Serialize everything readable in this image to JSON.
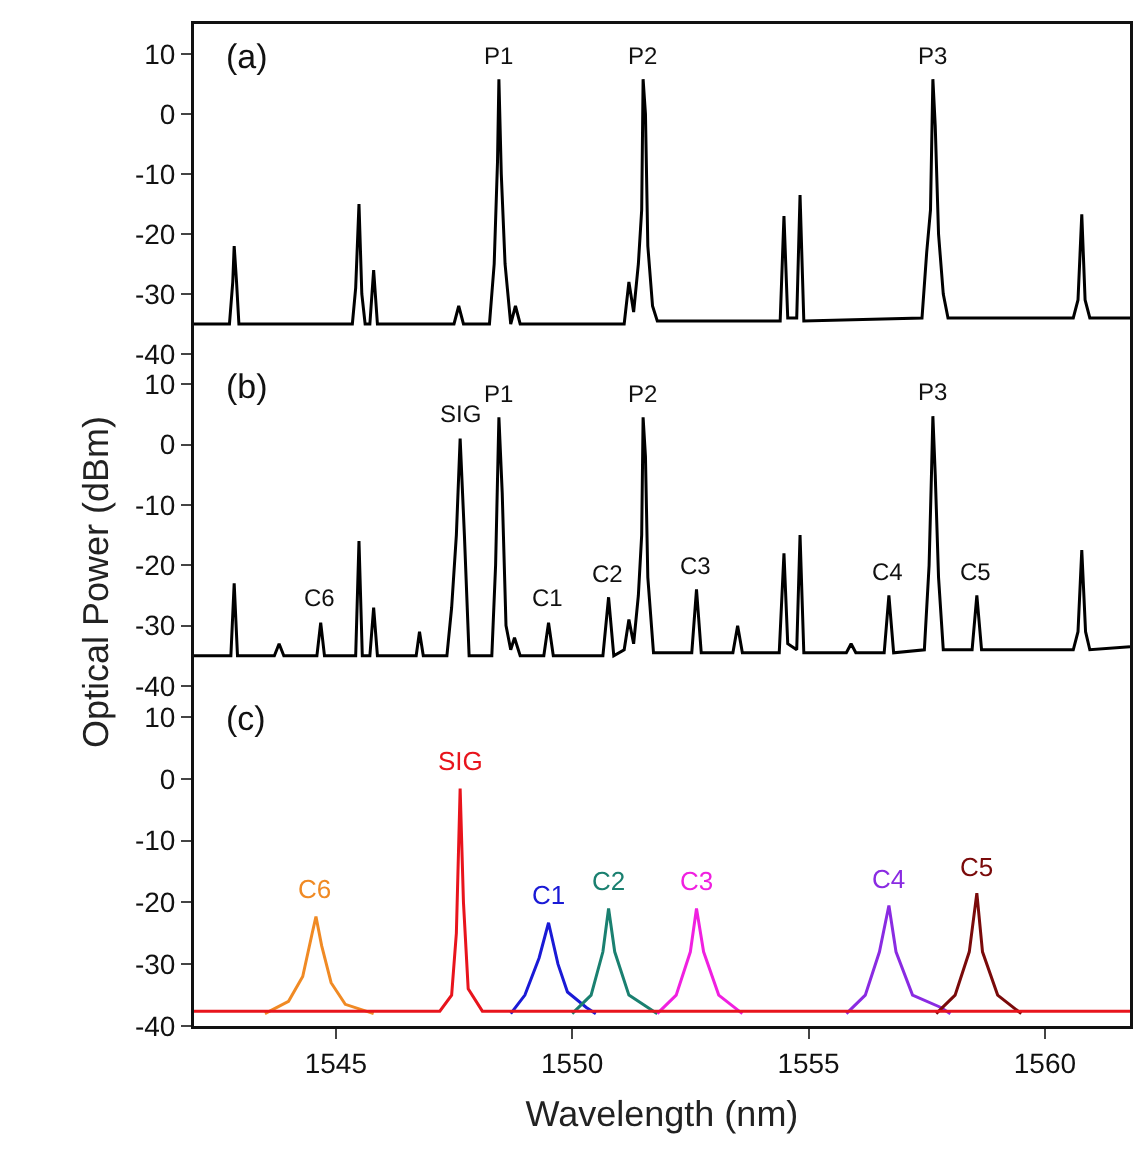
{
  "chart_data": [
    {
      "type": "line",
      "xlim": [
        1542,
        1561.8
      ],
      "xticks": [
        1545,
        1550,
        1555,
        1560
      ],
      "ylim": [
        -40,
        15
      ],
      "yticks": [
        -40,
        -30,
        -20,
        -10,
        0,
        10
      ],
      "tick_labels": "y",
      "annotations": [
        "(a)",
        {
          "text": "P1",
          "x": 1548.45,
          "y": 5.8
        },
        {
          "text": "P2",
          "x": 1551.5,
          "y": 5.8
        },
        {
          "text": "P3",
          "x": 1557.63,
          "y": 5.8
        }
      ],
      "series": [
        {
          "color": "#000000",
          "x": [
            1542.0,
            1542.75,
            1542.82,
            1542.85,
            1542.9,
            1542.95,
            1545.35,
            1545.42,
            1545.49,
            1545.55,
            1545.62,
            1545.72,
            1545.8,
            1545.88,
            1547.5,
            1547.6,
            1547.7,
            1548.25,
            1548.35,
            1548.42,
            1548.45,
            1548.5,
            1548.58,
            1548.7,
            1548.8,
            1548.9,
            1551.1,
            1551.2,
            1551.3,
            1551.4,
            1551.47,
            1551.5,
            1551.55,
            1551.6,
            1551.7,
            1551.8,
            1554.4,
            1554.48,
            1554.56,
            1554.75,
            1554.82,
            1554.9,
            1557.4,
            1557.5,
            1557.58,
            1557.63,
            1557.68,
            1557.75,
            1557.85,
            1557.95,
            1560.6,
            1560.7,
            1560.78,
            1560.85,
            1560.95,
            1561.8
          ],
          "values": [
            -35,
            -35,
            -28,
            -22,
            -28,
            -35,
            -35,
            -29,
            -15,
            -30,
            -35,
            -35,
            -26,
            -35,
            -35,
            -32,
            -35,
            -35,
            -25,
            -8,
            5.8,
            -10,
            -25,
            -35,
            -32,
            -35,
            -35,
            -28,
            -33,
            -25,
            -16,
            5.8,
            0,
            -22,
            -32,
            -34.5,
            -34.5,
            -17,
            -34,
            -34,
            -13.5,
            -34.5,
            -34,
            -23,
            -16,
            5.8,
            -2,
            -20,
            -30,
            -34,
            -34,
            -31,
            -16.7,
            -31,
            -34,
            -34
          ]
        }
      ]
    },
    {
      "type": "line",
      "xlim": [
        1542,
        1561.8
      ],
      "xticks": [
        1545,
        1550,
        1555,
        1560
      ],
      "ylim": [
        -40,
        15
      ],
      "yticks": [
        -40,
        -30,
        -20,
        -10,
        0,
        10
      ],
      "tick_labels": "y",
      "ylabel": "Optical Power (dBm)",
      "annotations": [
        "(b)",
        {
          "text": "C6",
          "x": 1544.68,
          "y": -29.5
        },
        {
          "text": "SIG",
          "x": 1547.63,
          "y": 1
        },
        {
          "text": "P1",
          "x": 1548.45,
          "y": 4.5
        },
        {
          "text": "C1",
          "x": 1549.5,
          "y": -29.5
        },
        {
          "text": "C2",
          "x": 1550.77,
          "y": -25.3
        },
        {
          "text": "P2",
          "x": 1551.5,
          "y": 4.5
        },
        {
          "text": "C3",
          "x": 1552.63,
          "y": -24
        },
        {
          "text": "C4",
          "x": 1556.7,
          "y": -25
        },
        {
          "text": "P3",
          "x": 1557.63,
          "y": 4.7
        },
        {
          "text": "C5",
          "x": 1558.56,
          "y": -25
        }
      ],
      "series": [
        {
          "color": "#000000",
          "x": [
            1542.0,
            1542.78,
            1542.85,
            1542.92,
            1543.7,
            1543.8,
            1543.9,
            1544.6,
            1544.68,
            1544.76,
            1545.42,
            1545.49,
            1545.56,
            1545.72,
            1545.8,
            1545.88,
            1546.7,
            1546.77,
            1546.85,
            1547.35,
            1547.45,
            1547.55,
            1547.63,
            1547.72,
            1547.82,
            1548.3,
            1548.38,
            1548.45,
            1548.52,
            1548.6,
            1548.7,
            1548.78,
            1548.9,
            1549.4,
            1549.5,
            1549.6,
            1550.65,
            1550.77,
            1550.88,
            1551.1,
            1551.2,
            1551.3,
            1551.4,
            1551.47,
            1551.5,
            1551.55,
            1551.6,
            1551.72,
            1552.53,
            1552.63,
            1552.73,
            1553.4,
            1553.5,
            1553.6,
            1554.38,
            1554.48,
            1554.56,
            1554.75,
            1554.82,
            1554.9,
            1555.8,
            1555.9,
            1556.0,
            1556.6,
            1556.7,
            1556.8,
            1557.45,
            1557.55,
            1557.6,
            1557.63,
            1557.68,
            1557.75,
            1557.85,
            1558.46,
            1558.56,
            1558.66,
            1560.6,
            1560.7,
            1560.78,
            1560.86,
            1560.95,
            1561.8
          ],
          "values": [
            -35,
            -35,
            -23,
            -35,
            -35,
            -33,
            -35,
            -35,
            -29.5,
            -35,
            -35,
            -16,
            -35,
            -35,
            -27,
            -35,
            -35,
            -31,
            -35,
            -35,
            -27,
            -15,
            1,
            -15,
            -35,
            -35,
            -20,
            4.5,
            -8,
            -30,
            -34,
            -32,
            -35,
            -35,
            -29.5,
            -35,
            -35,
            -25.3,
            -35,
            -34,
            -29,
            -33,
            -25,
            -15,
            4.5,
            -2,
            -22,
            -34.5,
            -34.5,
            -24,
            -34.5,
            -34.5,
            -30,
            -34.5,
            -34.5,
            -18,
            -33,
            -34,
            -15,
            -34.5,
            -34.5,
            -33,
            -34.5,
            -34.5,
            -25,
            -34.5,
            -34,
            -20,
            -5,
            4.7,
            -5,
            -22,
            -34,
            -34,
            -25,
            -34,
            -34,
            -31,
            -17.5,
            -31,
            -34,
            -33.5
          ]
        }
      ]
    },
    {
      "type": "line",
      "xlim": [
        1542,
        1561.8
      ],
      "xticks": [
        1545,
        1550,
        1555,
        1560
      ],
      "ylim": [
        -40,
        15
      ],
      "yticks": [
        -40,
        -30,
        -20,
        -10,
        0,
        10
      ],
      "xlabel": "Wavelength (nm)",
      "annotations": [
        "(c)"
      ],
      "series": [
        {
          "name": "C6",
          "color": "#f08a24",
          "x": [
            1543.5,
            1544.0,
            1544.3,
            1544.5,
            1544.58,
            1544.7,
            1544.9,
            1545.2,
            1545.8
          ],
          "values": [
            -38,
            -36,
            -32,
            -25,
            -22.3,
            -27,
            -33,
            -36.5,
            -38
          ]
        },
        {
          "name": "C1",
          "color": "#1a1ad6",
          "x": [
            1548.7,
            1549.0,
            1549.3,
            1549.5,
            1549.7,
            1549.9,
            1550.3,
            1550.5
          ],
          "values": [
            -38,
            -35,
            -29,
            -23.3,
            -30,
            -34.5,
            -37,
            -38
          ]
        },
        {
          "name": "C2",
          "color": "#1a8070",
          "x": [
            1550.0,
            1550.4,
            1550.65,
            1550.77,
            1550.9,
            1551.2,
            1551.6,
            1551.8
          ],
          "values": [
            -38,
            -35,
            -28,
            -21,
            -28,
            -35,
            -37,
            -38
          ]
        },
        {
          "name": "C3",
          "color": "#f020e0",
          "x": [
            1551.8,
            1552.2,
            1552.5,
            1552.63,
            1552.78,
            1553.1,
            1553.6
          ],
          "values": [
            -38,
            -35,
            -28,
            -21,
            -28,
            -35,
            -38
          ]
        },
        {
          "name": "C4",
          "color": "#8a2be2",
          "x": [
            1555.8,
            1556.2,
            1556.5,
            1556.7,
            1556.85,
            1557.2,
            1557.8,
            1558.0
          ],
          "values": [
            -38,
            -35,
            -28,
            -20.5,
            -28,
            -35,
            -37,
            -38
          ]
        },
        {
          "name": "C5",
          "color": "#7a0a0a",
          "x": [
            1557.7,
            1558.1,
            1558.4,
            1558.56,
            1558.68,
            1559.0,
            1559.5
          ],
          "values": [
            -38,
            -35,
            -28,
            -18.5,
            -28,
            -35,
            -38
          ]
        },
        {
          "name": "SIG",
          "color": "#e8141c",
          "x": [
            1542,
            1547.2,
            1547.45,
            1547.55,
            1547.63,
            1547.7,
            1547.8,
            1548.1,
            1561.8
          ],
          "values": [
            -37.6,
            -37.6,
            -35,
            -25,
            -1.6,
            -20,
            -34,
            -37.6,
            -37.6
          ]
        }
      ]
    }
  ]
}
